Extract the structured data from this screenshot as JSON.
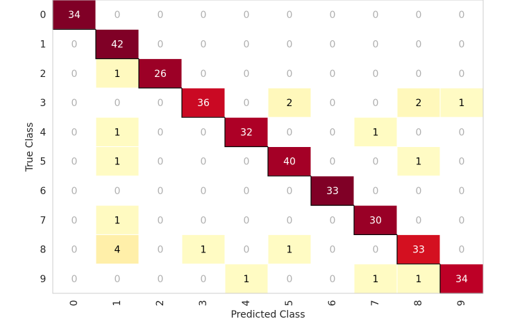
{
  "chart_data": {
    "type": "heatmap",
    "title": "",
    "xlabel": "Predicted Class",
    "ylabel": "True Class",
    "x_categories": [
      "0",
      "1",
      "2",
      "3",
      "4",
      "5",
      "6",
      "7",
      "8",
      "9"
    ],
    "y_categories": [
      "0",
      "1",
      "2",
      "3",
      "4",
      "5",
      "6",
      "7",
      "8",
      "9"
    ],
    "matrix": [
      [
        34,
        0,
        0,
        0,
        0,
        0,
        0,
        0,
        0,
        0
      ],
      [
        0,
        42,
        0,
        0,
        0,
        0,
        0,
        0,
        0,
        0
      ],
      [
        0,
        1,
        26,
        0,
        0,
        0,
        0,
        0,
        0,
        0
      ],
      [
        0,
        0,
        0,
        36,
        0,
        2,
        0,
        0,
        2,
        1
      ],
      [
        0,
        1,
        0,
        0,
        32,
        0,
        0,
        1,
        0,
        0
      ],
      [
        0,
        1,
        0,
        0,
        0,
        40,
        0,
        0,
        1,
        0
      ],
      [
        0,
        0,
        0,
        0,
        0,
        0,
        33,
        0,
        0,
        0
      ],
      [
        0,
        1,
        0,
        0,
        0,
        0,
        0,
        30,
        0,
        0
      ],
      [
        0,
        4,
        0,
        1,
        0,
        1,
        0,
        0,
        33,
        0
      ],
      [
        0,
        0,
        0,
        0,
        1,
        0,
        0,
        1,
        1,
        34
      ]
    ],
    "colormap": "YlOrRd",
    "zero_text_color": "#b0b0b0",
    "border_color": "#cccccc",
    "diagonal_edge_color": "#000000"
  }
}
